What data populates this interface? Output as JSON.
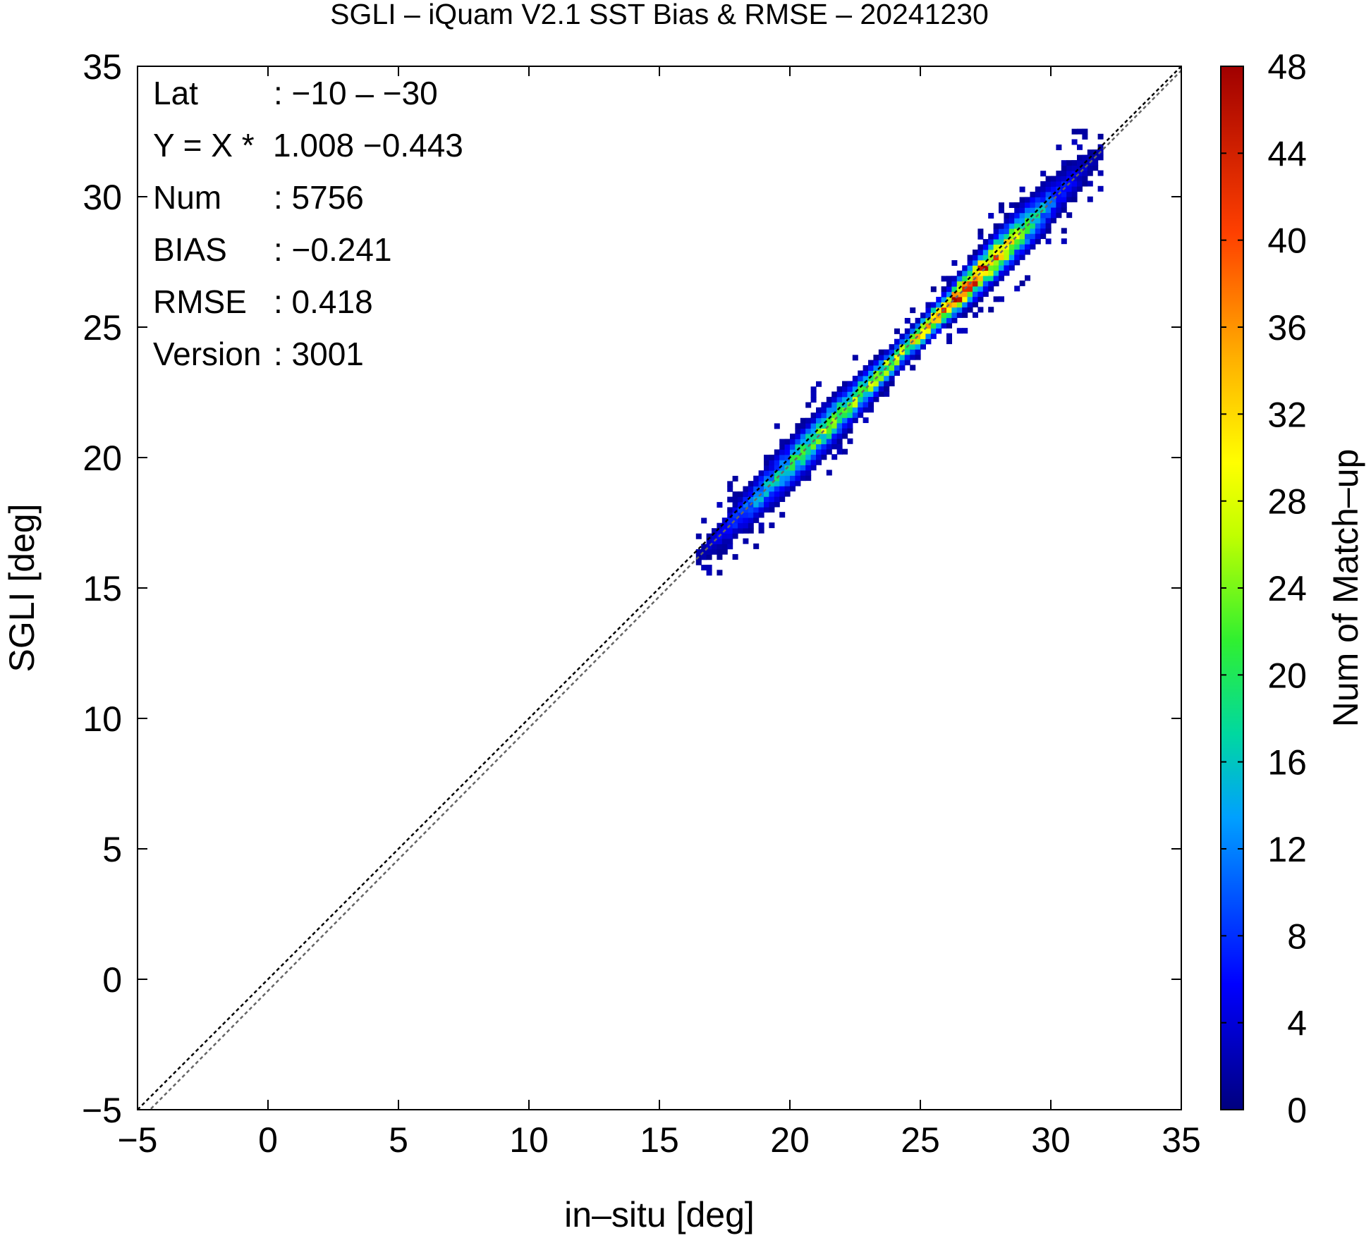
{
  "chart_data": {
    "type": "heatmap",
    "title": "SGLI – iQuam V2.1 SST Bias & RMSE  – 20241230",
    "xlabel": "in–situ [deg]",
    "ylabel": "SGLI [deg]",
    "xlim": [
      -5,
      35
    ],
    "ylim": [
      -5,
      35
    ],
    "xticks": [
      "−5",
      "0",
      "5",
      "10",
      "15",
      "20",
      "25",
      "30",
      "35"
    ],
    "yticks": [
      "−5",
      "0",
      "5",
      "10",
      "15",
      "20",
      "25",
      "30",
      "35"
    ],
    "grid": false,
    "colorbar": {
      "label": "Num of Match–up",
      "min": 0,
      "max": 48,
      "ticks": [
        "0",
        "4",
        "8",
        "12",
        "16",
        "20",
        "24",
        "28",
        "32",
        "36",
        "40",
        "44",
        "48"
      ]
    },
    "reference_lines": [
      {
        "type": "identity",
        "slope": 1.0,
        "intercept": 0.0,
        "color": "#000000"
      },
      {
        "type": "regression",
        "slope": 1.008,
        "intercept": -0.443,
        "color": "#666666"
      }
    ],
    "annotations": [
      {
        "label": "Lat",
        "value": ": −10 – −30"
      },
      {
        "label": "Y = X * ",
        "value": "1.008 −0.443"
      },
      {
        "label": "Num",
        "value": ": 5756"
      },
      {
        "label": "BIAS",
        "value": ": −0.241"
      },
      {
        "label": "RMSE",
        "value": ": 0.418"
      },
      {
        "label": "Version",
        "value": ": 3001"
      }
    ],
    "density_profile": [
      {
        "x": 16.5,
        "peak": 2
      },
      {
        "x": 17.5,
        "peak": 6
      },
      {
        "x": 18.5,
        "peak": 12
      },
      {
        "x": 19.5,
        "peak": 16
      },
      {
        "x": 20.5,
        "peak": 20
      },
      {
        "x": 21.5,
        "peak": 24
      },
      {
        "x": 22.5,
        "peak": 24
      },
      {
        "x": 23.5,
        "peak": 26
      },
      {
        "x": 24.5,
        "peak": 28
      },
      {
        "x": 25.5,
        "peak": 34
      },
      {
        "x": 26.5,
        "peak": 44
      },
      {
        "x": 27.5,
        "peak": 38
      },
      {
        "x": 28.5,
        "peak": 26
      },
      {
        "x": 29.5,
        "peak": 14
      },
      {
        "x": 30.5,
        "peak": 6
      },
      {
        "x": 31.5,
        "peak": 2
      }
    ]
  }
}
